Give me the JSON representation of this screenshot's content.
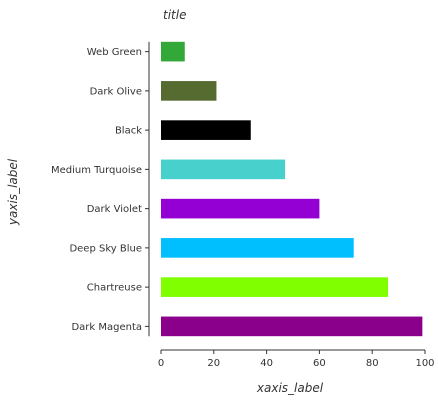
{
  "chart_data": {
    "type": "bar",
    "orientation": "horizontal",
    "title": "title",
    "xlabel": "xaxis_label",
    "ylabel": "yaxis_label",
    "xlim": [
      0,
      100
    ],
    "xticks": [
      "0",
      "20",
      "40",
      "60",
      "80",
      "100"
    ],
    "grid": false,
    "categories": [
      "Web Green",
      "Dark Olive",
      "Black",
      "Medium Turquoise",
      "Dark Violet",
      "Deep Sky Blue",
      "Chartreuse",
      "Dark Magenta"
    ],
    "values": [
      9,
      21,
      34,
      47,
      60,
      73,
      86,
      99
    ],
    "colors": [
      "#32a838",
      "#556b2f",
      "#000000",
      "#48d1cc",
      "#9400d3",
      "#00bfff",
      "#7fff00",
      "#8b008b"
    ]
  }
}
